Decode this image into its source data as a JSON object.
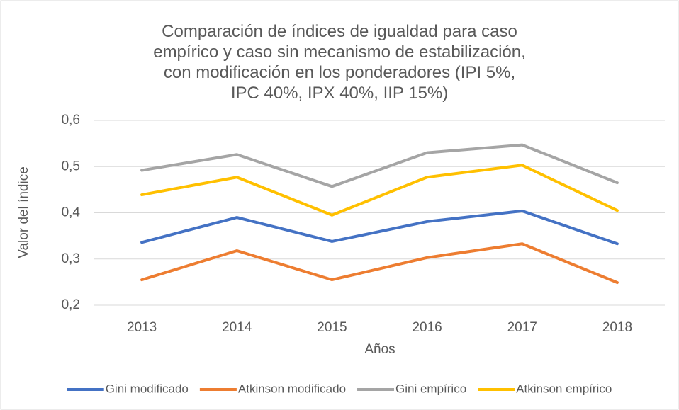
{
  "chart_data": {
    "type": "line",
    "title": "Comparación de índices de igualdad para caso empírico y caso sin mecanismo de estabilización, con modificación en los ponderadores (IPI 5%, IPC 40%, IPX 40%, IIP 15%)",
    "x_label": "Años",
    "y_label": "Valor del índice",
    "categories": [
      "2013",
      "2014",
      "2015",
      "2016",
      "2017",
      "2018"
    ],
    "series": [
      {
        "name": "Gini modificado",
        "color": "#4472c4",
        "values": [
          0.336,
          0.39,
          0.338,
          0.381,
          0.404,
          0.333
        ]
      },
      {
        "name": "Atkinson modificado",
        "color": "#ed7d31",
        "values": [
          0.255,
          0.318,
          0.255,
          0.303,
          0.333,
          0.249
        ]
      },
      {
        "name": "Gini empírico",
        "color": "#a5a5a5",
        "values": [
          0.492,
          0.526,
          0.457,
          0.53,
          0.547,
          0.465
        ]
      },
      {
        "name": "Atkinson empírico",
        "color": "#ffc000",
        "values": [
          0.439,
          0.477,
          0.395,
          0.477,
          0.503,
          0.405
        ]
      }
    ],
    "ylim": [
      0.2,
      0.6
    ],
    "yticks": [
      {
        "value": 0.2,
        "label": "0,2"
      },
      {
        "value": 0.3,
        "label": "0,3"
      },
      {
        "value": 0.4,
        "label": "0,4"
      },
      {
        "value": 0.5,
        "label": "0,5"
      },
      {
        "value": 0.6,
        "label": "0,6"
      }
    ],
    "grid": true,
    "legend": "bottom"
  }
}
